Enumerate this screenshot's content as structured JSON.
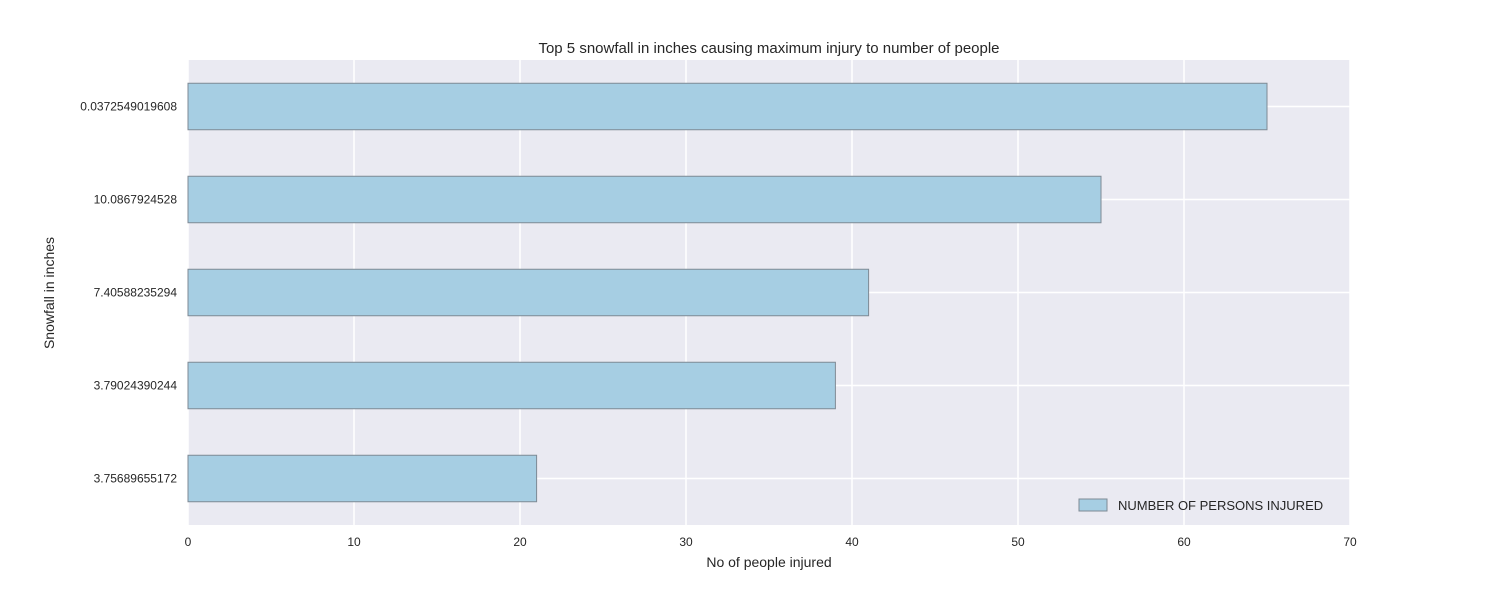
{
  "chart_data": {
    "type": "bar",
    "orientation": "horizontal",
    "title": "Top 5 snowfall in inches causing maximum injury to number of people",
    "xlabel": "No of people injured",
    "ylabel": "Snowfall in inches",
    "categories": [
      "0.0372549019608",
      "10.0867924528",
      "7.40588235294",
      "3.79024390244",
      "3.75689655172"
    ],
    "series": [
      {
        "name": "NUMBER OF PERSONS INJURED",
        "values": [
          65,
          55,
          41,
          39,
          21
        ]
      }
    ],
    "xlim": [
      0,
      70
    ],
    "xticks": [
      0,
      10,
      20,
      30,
      40,
      50,
      60,
      70
    ],
    "grid": true,
    "legend": "bottom-right",
    "colors": {
      "bar_fill": "#a6cee3",
      "bar_edge": "#7f8a94",
      "plot_bg": "#eaeaf2",
      "grid": "#ffffff"
    }
  }
}
